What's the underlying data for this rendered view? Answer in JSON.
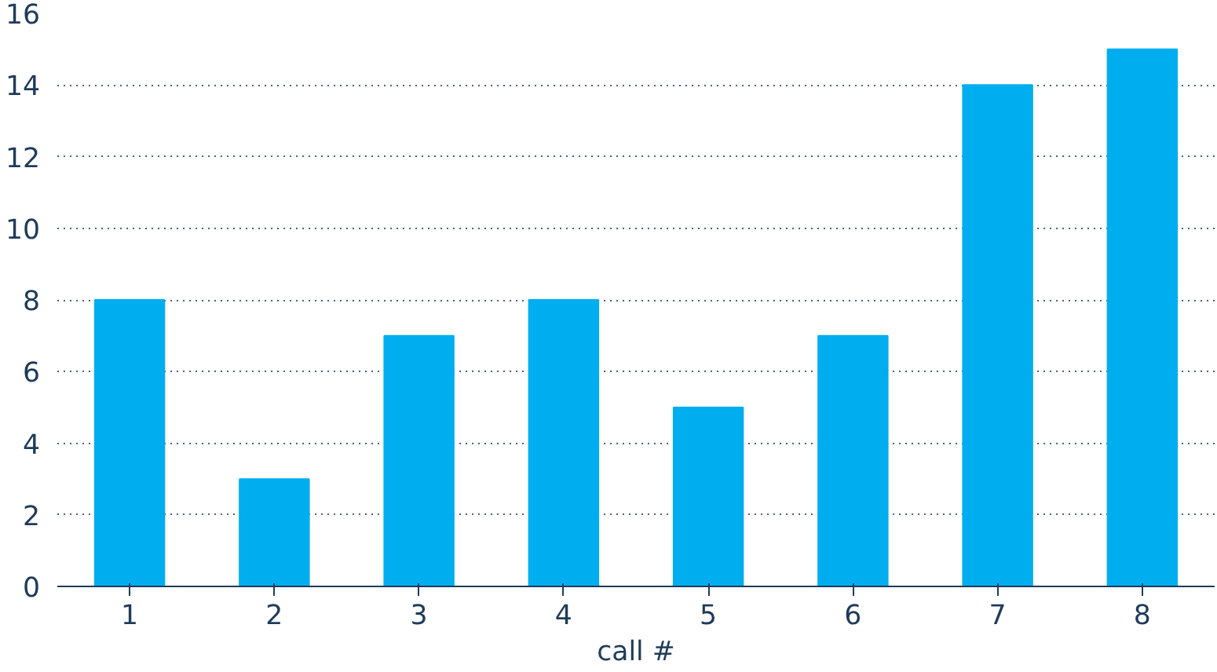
{
  "chart_data": {
    "type": "bar",
    "xlabel": "call #",
    "categories": [
      "1",
      "2",
      "3",
      "4",
      "5",
      "6",
      "7",
      "8"
    ],
    "values": [
      8,
      3,
      7,
      8,
      5,
      7,
      14,
      15
    ],
    "color": "#00aeef",
    "ylim": [
      0,
      16
    ],
    "yticks": [
      0,
      2,
      4,
      6,
      8,
      10,
      12,
      14,
      16
    ],
    "grid": "y"
  }
}
